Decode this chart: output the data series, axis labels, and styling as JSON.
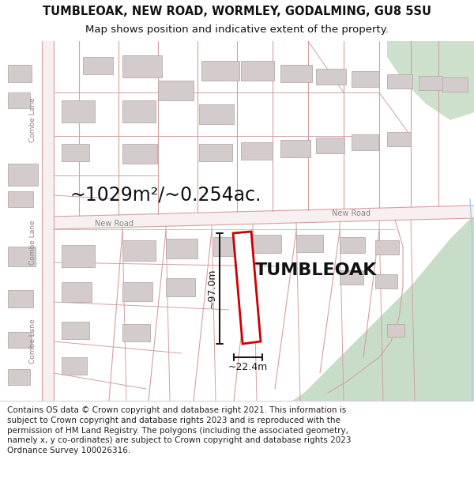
{
  "title_line1": "TUMBLEOAK, NEW ROAD, WORMLEY, GODALMING, GU8 5SU",
  "title_line2": "Map shows position and indicative extent of the property.",
  "area_label": "~1029m²/~0.254ac.",
  "property_name": "TUMBLEOAK",
  "dim_vertical": "~97.0m",
  "dim_horizontal": "~22.4m",
  "road_label1": "New Road",
  "road_label2": "New Road",
  "street_label1": "Combe Lane",
  "street_label2": "Combe Lane",
  "street_label3": "Combe Lane",
  "footer_text": "Contains OS data © Crown copyright and database right 2021. This information is subject to Crown copyright and database rights 2023 and is reproduced with the permission of HM Land Registry. The polygons (including the associated geometry, namely x, y co-ordinates) are subject to Crown copyright and database rights 2023 Ordnance Survey 100026316.",
  "bg_color": "#ffffff",
  "map_bg": "#f0eaea",
  "building_fill": "#d4cccc",
  "building_border": "#b8aaaa",
  "property_fill": "#ffffff",
  "property_outline_color": "#cc0000",
  "green_color": "#cce0cc",
  "green_color2": "#c8ddc8",
  "dim_line_color": "#1a1a1a",
  "road_line_color": "#d4a0a0",
  "road_fill": "#f8f0f0",
  "text_color": "#111111",
  "label_color": "#888888",
  "footer_color": "#222222",
  "title_fontsize": 10.5,
  "subtitle_fontsize": 9.5,
  "area_fontsize": 17,
  "propname_fontsize": 16,
  "road_label_fontsize": 7,
  "street_label_fontsize": 6.5,
  "dim_fontsize": 9,
  "footer_fontsize": 7.5
}
